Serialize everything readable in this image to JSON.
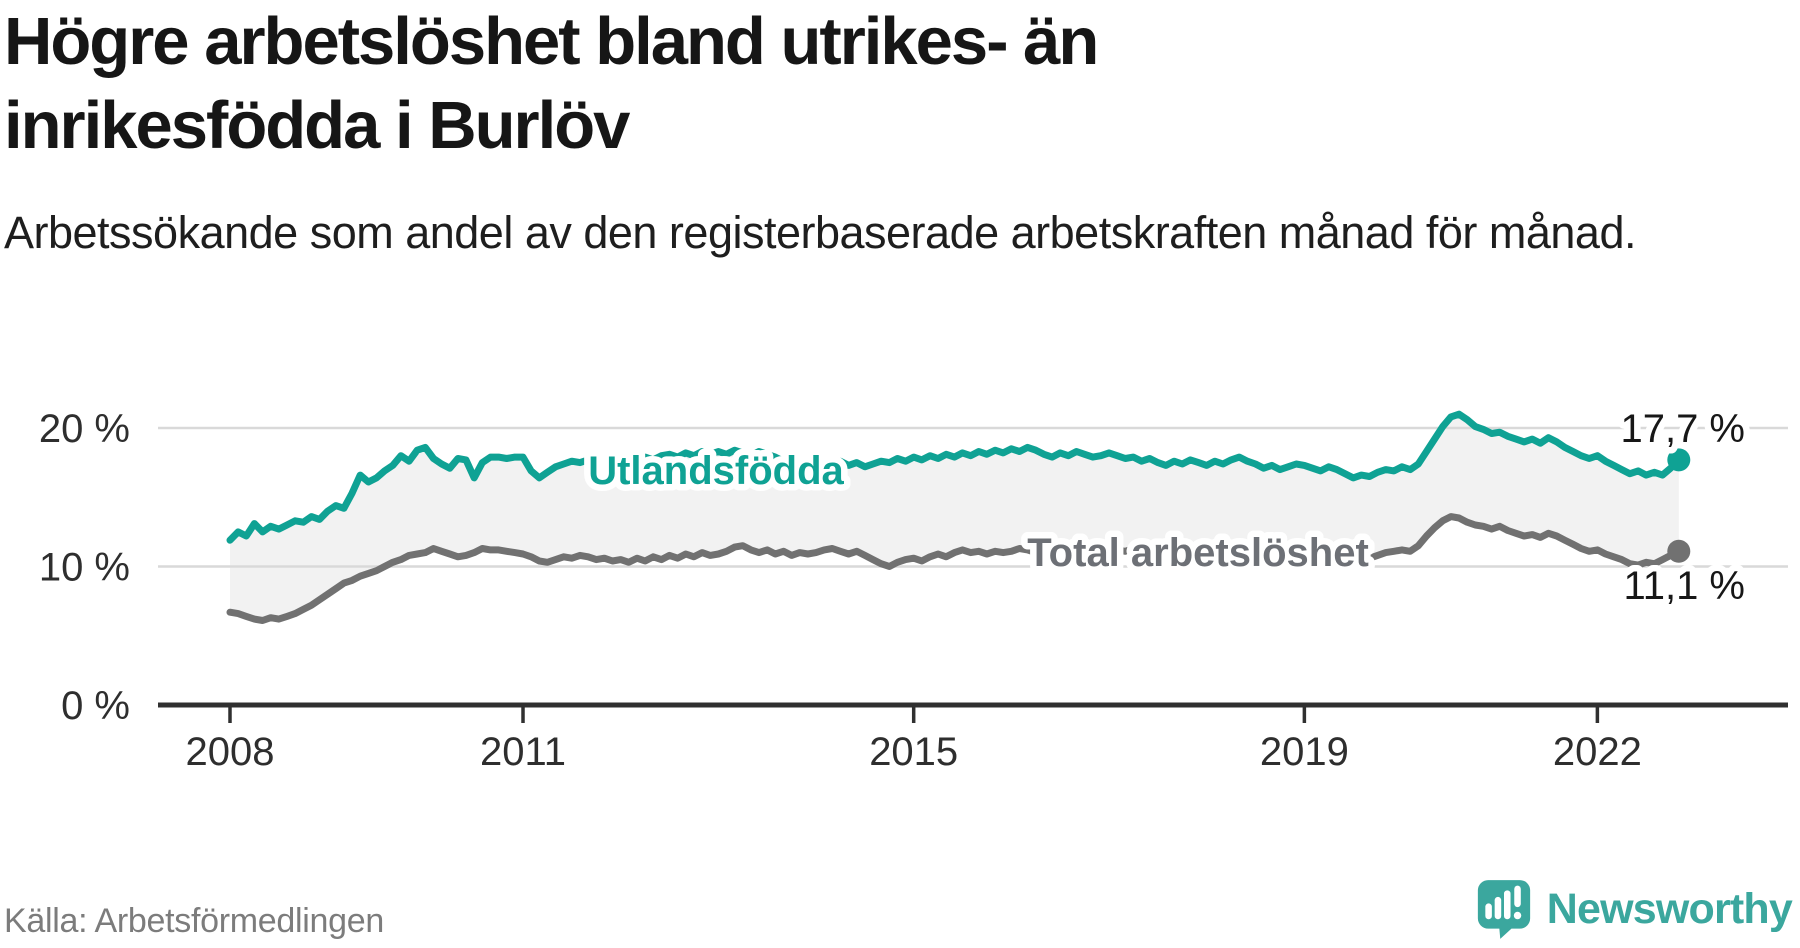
{
  "header": {
    "title": "Högre arbetslöshet bland utrikes- än inrikesfödda i Burlöv",
    "subtitle": "Arbetssökande som andel av den registerbaserade arbetskraften månad för månad."
  },
  "footer": {
    "source": "Källa: Arbetsförmedlingen",
    "brand": "Newsworthy",
    "brand_icon": "speech-bubble-bar-chart-exclamation",
    "brand_color": "#3BA79E"
  },
  "colors": {
    "background": "#ffffff",
    "title_text": "#161616",
    "axis": "#303030",
    "gridline": "#d9d9d9",
    "band_fill": "#f2f2f2",
    "series_teal": "#0FA294",
    "series_gray": "#717171",
    "gray_label": "#6d7076",
    "source_text": "#7c7c7c"
  },
  "chart_data": {
    "type": "line",
    "title": "Högre arbetslöshet bland utrikes- än inrikesfödda i Burlöv",
    "subtitle": "Arbetssökande som andel av den registerbaserade arbetskraften månad för månad.",
    "unit": "%",
    "x_start_year": 2008,
    "x_step_months": 1,
    "x_ticks": [
      2008,
      2011,
      2015,
      2019,
      2022
    ],
    "y_ticks": [
      {
        "value": 0,
        "label": "0 %"
      },
      {
        "value": 10,
        "label": "10 %"
      },
      {
        "value": 20,
        "label": "20 %"
      }
    ],
    "ylim": [
      0,
      22
    ],
    "grid": "horizontal",
    "legend_position": "inline-labels",
    "band_fill_between_series": "#f2f2f2",
    "series": [
      {
        "name": "Utlandsfödda",
        "color": "#0FA294",
        "end_label": "17,7 %",
        "last_value": 17.7,
        "values": [
          11.9,
          12.5,
          12.2,
          13.1,
          12.5,
          12.9,
          12.7,
          13.0,
          13.3,
          13.2,
          13.6,
          13.4,
          14.0,
          14.4,
          14.2,
          15.3,
          16.6,
          16.1,
          16.4,
          16.9,
          17.3,
          18.0,
          17.6,
          18.4,
          18.6,
          17.8,
          17.4,
          17.1,
          17.8,
          17.7,
          16.4,
          17.5,
          17.9,
          17.9,
          17.8,
          17.9,
          17.9,
          16.9,
          16.4,
          16.8,
          17.2,
          17.4,
          17.6,
          17.5,
          17.7,
          17.6,
          17.8,
          17.7,
          17.5,
          17.8,
          17.6,
          17.9,
          17.7,
          18.0,
          18.1,
          17.9,
          18.2,
          18.0,
          18.3,
          18.1,
          18.3,
          18.1,
          18.4,
          18.2,
          18.0,
          18.3,
          18.1,
          17.9,
          17.6,
          17.4,
          17.6,
          17.5,
          17.3,
          17.5,
          17.4,
          17.6,
          17.3,
          17.5,
          17.2,
          17.4,
          17.6,
          17.5,
          17.8,
          17.6,
          17.9,
          17.7,
          18.0,
          17.8,
          18.1,
          17.9,
          18.2,
          18.0,
          18.3,
          18.1,
          18.4,
          18.2,
          18.5,
          18.3,
          18.6,
          18.4,
          18.1,
          17.9,
          18.2,
          18.0,
          18.3,
          18.1,
          17.9,
          18.0,
          18.2,
          18.0,
          17.8,
          17.9,
          17.6,
          17.8,
          17.5,
          17.3,
          17.6,
          17.4,
          17.7,
          17.5,
          17.3,
          17.6,
          17.4,
          17.7,
          17.9,
          17.6,
          17.4,
          17.1,
          17.3,
          17.0,
          17.2,
          17.4,
          17.3,
          17.1,
          16.9,
          17.2,
          17.0,
          16.7,
          16.4,
          16.6,
          16.5,
          16.8,
          17.0,
          16.9,
          17.2,
          17.0,
          17.4,
          18.3,
          19.2,
          20.1,
          20.8,
          21.0,
          20.6,
          20.1,
          19.9,
          19.6,
          19.7,
          19.4,
          19.2,
          19.0,
          19.2,
          18.9,
          19.3,
          19.0,
          18.6,
          18.3,
          18.0,
          17.8,
          18.0,
          17.6,
          17.3,
          17.0,
          16.7,
          16.9,
          16.6,
          16.8,
          16.6,
          17.1,
          17.7
        ]
      },
      {
        "name": "Total arbetslöshet",
        "color": "#717171",
        "end_label": "11,1 %",
        "last_value": 11.1,
        "values": [
          6.7,
          6.6,
          6.4,
          6.2,
          6.1,
          6.3,
          6.2,
          6.4,
          6.6,
          6.9,
          7.2,
          7.6,
          8.0,
          8.4,
          8.8,
          9.0,
          9.3,
          9.5,
          9.7,
          10.0,
          10.3,
          10.5,
          10.8,
          10.9,
          11.0,
          11.3,
          11.1,
          10.9,
          10.7,
          10.8,
          11.0,
          11.3,
          11.2,
          11.2,
          11.1,
          11.0,
          10.9,
          10.7,
          10.4,
          10.3,
          10.5,
          10.7,
          10.6,
          10.8,
          10.7,
          10.5,
          10.6,
          10.4,
          10.5,
          10.3,
          10.6,
          10.4,
          10.7,
          10.5,
          10.8,
          10.6,
          10.9,
          10.7,
          11.0,
          10.8,
          10.9,
          11.1,
          11.4,
          11.5,
          11.2,
          11.0,
          11.2,
          10.9,
          11.1,
          10.8,
          11.0,
          10.9,
          11.0,
          11.2,
          11.3,
          11.1,
          10.9,
          11.1,
          10.8,
          10.5,
          10.2,
          10.0,
          10.3,
          10.5,
          10.6,
          10.4,
          10.7,
          10.9,
          10.7,
          11.0,
          11.2,
          11.0,
          11.1,
          10.9,
          11.1,
          11.0,
          11.1,
          11.3,
          11.2,
          11.0,
          11.1,
          10.9,
          11.1,
          11.0,
          11.2,
          11.1,
          11.0,
          11.1,
          11.0,
          11.2,
          11.1,
          11.3,
          11.1,
          11.0,
          11.2,
          11.0,
          10.9,
          11.1,
          11.0,
          11.2,
          11.1,
          11.0,
          10.8,
          11.0,
          11.1,
          10.9,
          10.8,
          10.6,
          10.8,
          10.7,
          10.9,
          11.0,
          10.9,
          11.1,
          11.0,
          10.8,
          10.9,
          10.7,
          10.5,
          10.7,
          10.6,
          10.8,
          11.0,
          11.1,
          11.2,
          11.1,
          11.5,
          12.2,
          12.8,
          13.3,
          13.6,
          13.5,
          13.2,
          13.0,
          12.9,
          12.7,
          12.9,
          12.6,
          12.4,
          12.2,
          12.3,
          12.1,
          12.4,
          12.2,
          11.9,
          11.6,
          11.3,
          11.1,
          11.2,
          10.9,
          10.7,
          10.5,
          10.2,
          10.1,
          10.3,
          10.2,
          10.5,
          10.8,
          11.1
        ]
      }
    ]
  }
}
